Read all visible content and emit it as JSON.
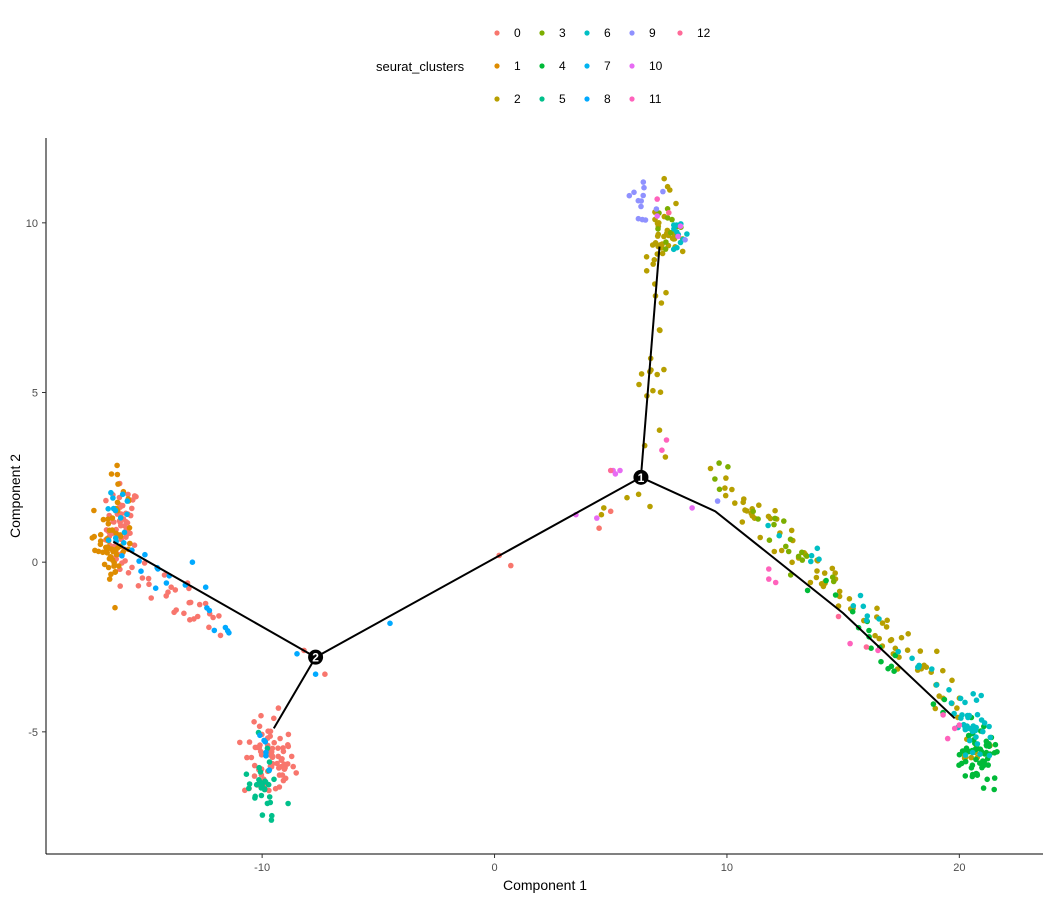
{
  "chart_data": {
    "type": "scatter",
    "title": "",
    "xlabel": "Component 1",
    "ylabel": "Component 2",
    "xlim": [
      -19.3,
      23.6
    ],
    "ylim": [
      -8.6,
      12.5
    ],
    "xticks": [
      -10,
      0,
      10,
      20
    ],
    "yticks": [
      -5,
      0,
      5,
      10
    ],
    "grid": false,
    "legend": {
      "title": "seurat_clusters",
      "placement": "top",
      "entries": [
        {
          "label": "0",
          "color": "#F8766D"
        },
        {
          "label": "1",
          "color": "#DE8C00"
        },
        {
          "label": "2",
          "color": "#B79F00"
        },
        {
          "label": "3",
          "color": "#7CAE00"
        },
        {
          "label": "4",
          "color": "#00BA38"
        },
        {
          "label": "5",
          "color": "#00C08B"
        },
        {
          "label": "6",
          "color": "#00BFC4"
        },
        {
          "label": "7",
          "color": "#00B4F0"
        },
        {
          "label": "8",
          "color": "#00A9FF"
        },
        {
          "label": "9",
          "color": "#8F91FF"
        },
        {
          "label": "10",
          "color": "#E76BF3"
        },
        {
          "label": "11",
          "color": "#FF62BC"
        },
        {
          "label": "12",
          "color": "#FF6A98"
        }
      ]
    },
    "trajectory": {
      "nodes": [
        {
          "label": "1",
          "x": 6.3,
          "y": 2.5
        },
        {
          "label": "2",
          "x": -7.7,
          "y": -2.8
        }
      ],
      "segments": [
        [
          [
            -16.4,
            0.6
          ],
          [
            -7.7,
            -2.8
          ]
        ],
        [
          [
            -7.7,
            -2.8
          ],
          [
            -9.5,
            -4.9
          ]
        ],
        [
          [
            -7.7,
            -2.8
          ],
          [
            6.3,
            2.5
          ]
        ],
        [
          [
            6.3,
            2.5
          ],
          [
            7.1,
            9.3
          ]
        ],
        [
          [
            6.3,
            2.5
          ],
          [
            9.5,
            1.5
          ],
          [
            15.0,
            -1.5
          ],
          [
            19.8,
            -4.6
          ]
        ]
      ]
    },
    "clusters": [
      {
        "cluster": "0",
        "color": "#F8766D",
        "regions": [
          {
            "cx": -16.0,
            "cy": 1.0,
            "n": 55,
            "sx": 0.35,
            "sy": 0.65
          },
          {
            "cx": -9.7,
            "cy": -5.9,
            "n": 70,
            "sx": 0.55,
            "sy": 0.55
          },
          {
            "cx": -14.0,
            "cy": -0.8,
            "n": 30,
            "sx": 1.2,
            "sy": 0.3,
            "line": [
              [
                -16.0,
                0.0
              ],
              [
                -11.8,
                -1.9
              ]
            ]
          }
        ],
        "points": [
          [
            -8.2,
            -2.6
          ],
          [
            -7.3,
            -3.3
          ],
          [
            -9.5,
            -4.6
          ],
          [
            -9.3,
            -4.3
          ],
          [
            0.2,
            0.2
          ],
          [
            0.7,
            -0.1
          ],
          [
            4.5,
            1.0
          ],
          [
            5.0,
            1.5
          ]
        ]
      },
      {
        "cluster": "1",
        "color": "#DE8C00",
        "regions": [
          {
            "cx": -16.5,
            "cy": 0.4,
            "n": 50,
            "sx": 0.35,
            "sy": 0.5
          },
          {
            "cx": -16.0,
            "cy": 1.6,
            "n": 10,
            "sx": 0.3,
            "sy": 0.6
          }
        ],
        "points": [
          [
            -16.2,
            2.3
          ]
        ]
      },
      {
        "cluster": "2",
        "color": "#B79F00",
        "regions": [
          {
            "cx": 7.4,
            "cy": 9.6,
            "n": 30,
            "sx": 0.4,
            "sy": 0.35
          },
          {
            "cx": 7.1,
            "cy": 6.0,
            "n": 28,
            "sx": 0.2,
            "sy": 1.7,
            "line": [
              [
                7.2,
                8.9
              ],
              [
                6.7,
                4.2
              ]
            ]
          },
          {
            "cx": 13.5,
            "cy": -0.6,
            "n": 85,
            "sx": 3.0,
            "sy": 0.25,
            "line": [
              [
                9.6,
                2.6
              ],
              [
                20.0,
                -4.2
              ]
            ]
          },
          {
            "cx": 20.3,
            "cy": -5.6,
            "n": 12,
            "sx": 0.4,
            "sy": 0.3
          }
        ],
        "points": [
          [
            7.3,
            11.3
          ],
          [
            5.7,
            1.9
          ],
          [
            4.7,
            1.6
          ],
          [
            4.6,
            1.4
          ],
          [
            6.2,
            2.0
          ]
        ]
      },
      {
        "cluster": "3",
        "color": "#7CAE00",
        "regions": [
          {
            "cx": 7.5,
            "cy": 9.8,
            "n": 10,
            "sx": 0.35,
            "sy": 0.3
          },
          {
            "cx": 12.0,
            "cy": 1.0,
            "n": 20,
            "sx": 1.5,
            "sy": 0.2,
            "line": [
              [
                9.6,
                2.7
              ],
              [
                14.5,
                -0.8
              ]
            ]
          }
        ],
        "points": []
      },
      {
        "cluster": "4",
        "color": "#00BA38",
        "regions": [
          {
            "cx": 20.8,
            "cy": -5.7,
            "n": 55,
            "sx": 0.45,
            "sy": 0.45
          },
          {
            "cx": 15.5,
            "cy": -2.1,
            "n": 18,
            "sx": 2.2,
            "sy": 0.2,
            "line": [
              [
                13.6,
                -0.4
              ],
              [
                20.0,
                -5.0
              ]
            ]
          }
        ],
        "points": [
          [
            21.5,
            -6.7
          ],
          [
            21.2,
            -6.4
          ]
        ]
      },
      {
        "cluster": "5",
        "color": "#00C08B",
        "regions": [
          {
            "cx": -10.0,
            "cy": -6.5,
            "n": 28,
            "sx": 0.4,
            "sy": 0.55
          }
        ],
        "points": [
          [
            -9.6,
            -7.6
          ],
          [
            -10.3,
            -6.9
          ]
        ]
      },
      {
        "cluster": "6",
        "color": "#00BFC4",
        "regions": [
          {
            "cx": 7.8,
            "cy": 9.6,
            "n": 12,
            "sx": 0.25,
            "sy": 0.3
          },
          {
            "cx": 20.5,
            "cy": -4.9,
            "n": 40,
            "sx": 0.4,
            "sy": 0.4
          },
          {
            "cx": 15.8,
            "cy": -2.0,
            "n": 20,
            "sx": 2.5,
            "sy": 0.2,
            "line": [
              [
                11.5,
                1.6
              ],
              [
                19.5,
                -3.9
              ]
            ]
          }
        ],
        "points": []
      },
      {
        "cluster": "7",
        "color": "#00B4F0",
        "regions": [
          {
            "cx": -16.2,
            "cy": 1.2,
            "n": 12,
            "sx": 0.3,
            "sy": 0.5
          }
        ],
        "points": [
          [
            -16.0,
            2.0
          ],
          [
            -15.8,
            1.8
          ]
        ]
      },
      {
        "cluster": "8",
        "color": "#00A9FF",
        "regions": [
          {
            "cx": -15.0,
            "cy": -0.6,
            "n": 18,
            "sx": 1.0,
            "sy": 0.25,
            "line": [
              [
                -16.2,
                0.5
              ],
              [
                -11.3,
                -1.8
              ]
            ]
          },
          {
            "cx": -10.0,
            "cy": -5.5,
            "n": 6,
            "sx": 0.3,
            "sy": 0.3
          }
        ],
        "points": [
          [
            -4.5,
            -1.8
          ],
          [
            -13.0,
            0.0
          ],
          [
            -8.5,
            -2.7
          ],
          [
            -7.7,
            -3.3
          ]
        ]
      },
      {
        "cluster": "9",
        "color": "#8F91FF",
        "regions": [
          {
            "cx": 6.6,
            "cy": 10.5,
            "n": 10,
            "sx": 0.35,
            "sy": 0.3
          }
        ],
        "points": [
          [
            5.8,
            10.8
          ],
          [
            6.0,
            10.9
          ],
          [
            6.4,
            11.2
          ],
          [
            8.2,
            9.5
          ],
          [
            9.6,
            1.8
          ]
        ]
      },
      {
        "cluster": "10",
        "color": "#E76BF3",
        "regions": [],
        "points": [
          [
            8.0,
            9.9
          ],
          [
            7.9,
            9.6
          ],
          [
            7.0,
            10.2
          ],
          [
            8.5,
            1.6
          ],
          [
            5.2,
            2.6
          ],
          [
            5.1,
            2.7
          ],
          [
            5.4,
            2.7
          ],
          [
            4.4,
            1.3
          ],
          [
            3.5,
            1.4
          ]
        ]
      },
      {
        "cluster": "11",
        "color": "#FF62BC",
        "regions": [],
        "points": [
          [
            7.0,
            10.7
          ],
          [
            7.4,
            3.6
          ],
          [
            7.2,
            3.3
          ],
          [
            11.8,
            -0.2
          ],
          [
            12.1,
            -0.6
          ],
          [
            11.8,
            -0.5
          ],
          [
            19.3,
            -4.5
          ],
          [
            15.3,
            -2.4
          ],
          [
            19.8,
            -4.9
          ],
          [
            20.0,
            -4.8
          ],
          [
            19.5,
            -5.2
          ],
          [
            16.5,
            -2.6
          ]
        ]
      },
      {
        "cluster": "12",
        "color": "#FF6A98",
        "regions": [],
        "points": [
          [
            7.5,
            10.3
          ],
          [
            5.0,
            2.7
          ],
          [
            16.0,
            -2.5
          ],
          [
            14.8,
            -1.6
          ]
        ]
      }
    ]
  }
}
